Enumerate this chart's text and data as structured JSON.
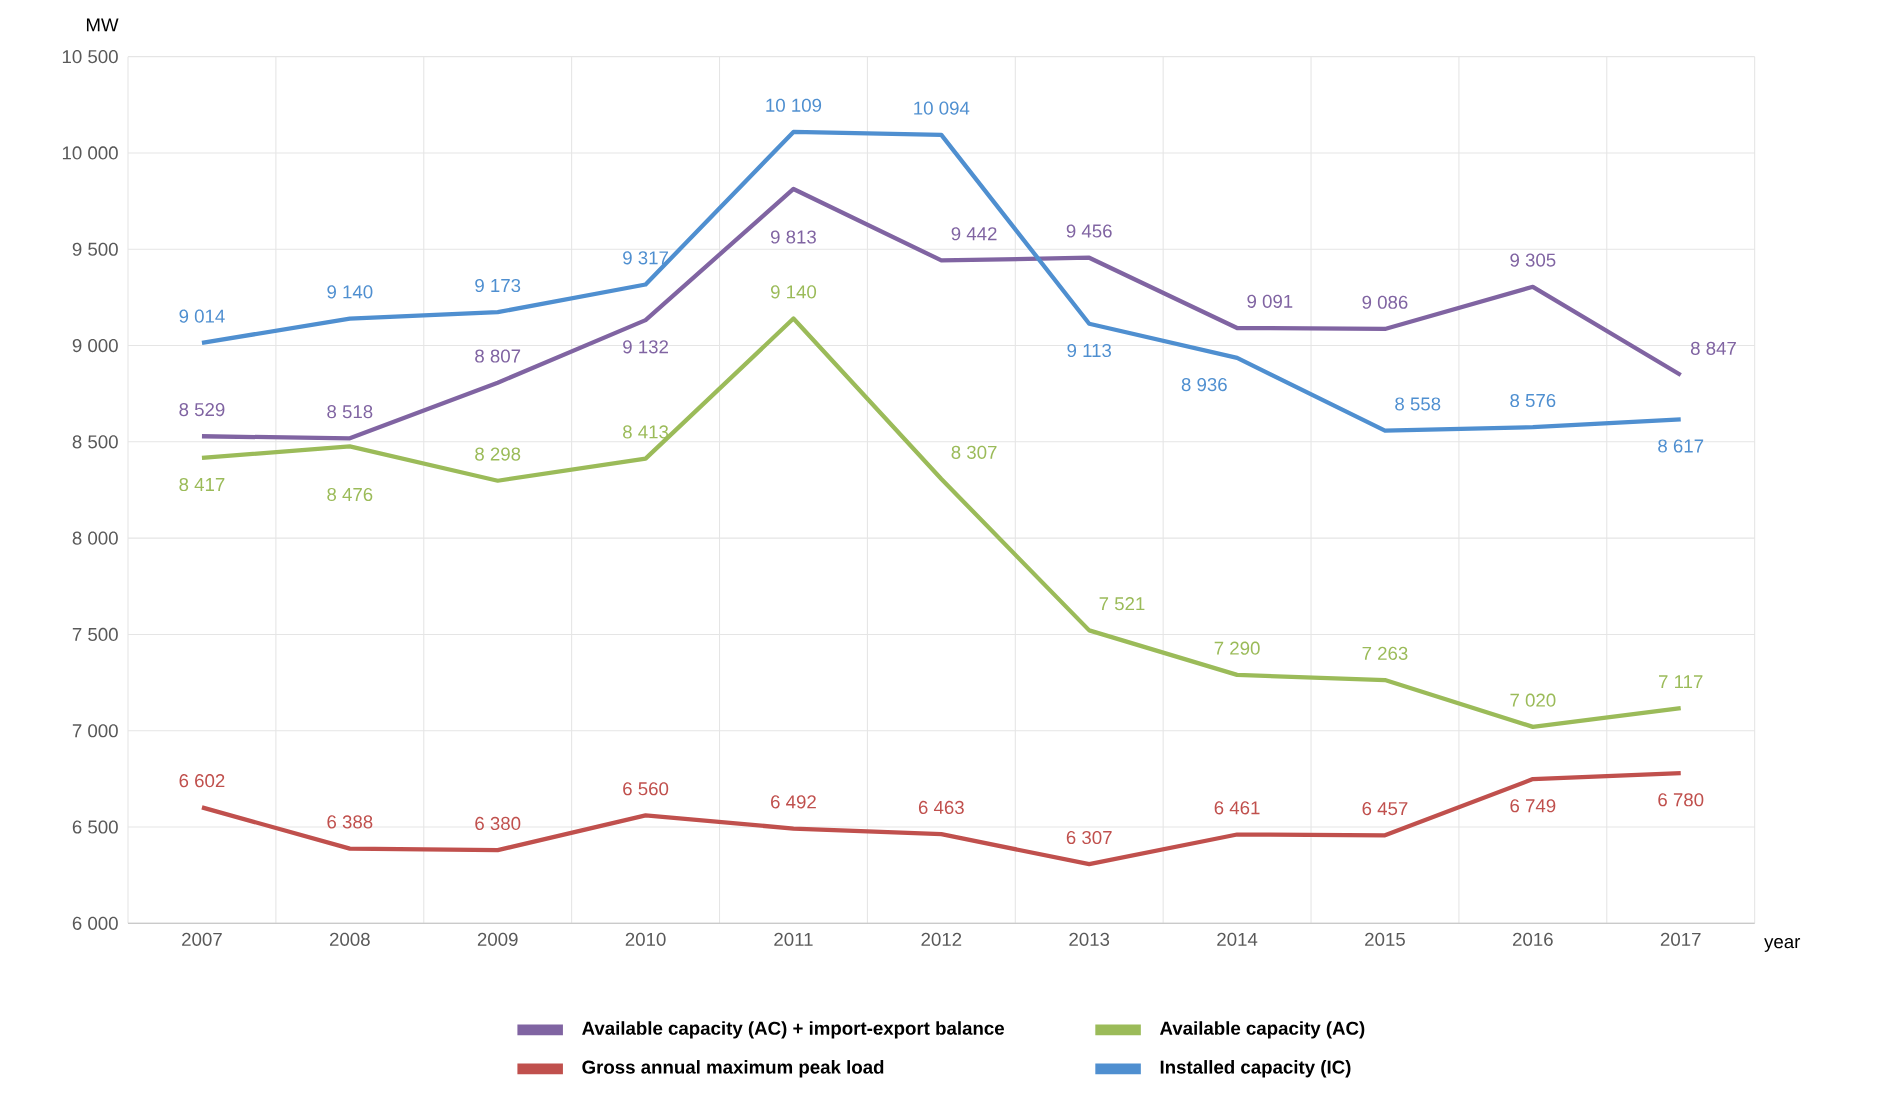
{
  "chart_data": {
    "type": "line",
    "xlabel": "year",
    "ylabel": "MW",
    "categories": [
      "2007",
      "2008",
      "2009",
      "2010",
      "2011",
      "2012",
      "2013",
      "2014",
      "2015",
      "2016",
      "2017"
    ],
    "series": [
      {
        "name": "Available capacity (AC) + import-export balance",
        "color": "#8064a2",
        "values": [
          8529,
          8518,
          8807,
          9132,
          9813,
          9442,
          9456,
          9091,
          9086,
          9305,
          8847
        ],
        "value_labels": [
          "8 529",
          "8 518",
          "8 807",
          "9 132",
          "9 813",
          "9 442",
          "9 456",
          "9 091",
          "9 086",
          "9 305",
          "8 847"
        ]
      },
      {
        "name": "Available capacity (AC)",
        "color": "#9bbb59",
        "values": [
          8417,
          8476,
          8298,
          8413,
          9140,
          8307,
          7521,
          7290,
          7263,
          7020,
          7117
        ],
        "value_labels": [
          "8 417",
          "8 476",
          "8 298",
          "8 413",
          "9 140",
          "8 307",
          "7 521",
          "7 290",
          "7 263",
          "7 020",
          "7 117"
        ]
      },
      {
        "name": "Gross annual maximum peak load",
        "color": "#c0504d",
        "values": [
          6602,
          6388,
          6380,
          6560,
          6492,
          6463,
          6307,
          6461,
          6457,
          6749,
          6780
        ],
        "value_labels": [
          "6 602",
          "6 388",
          "6 380",
          "6 560",
          "6 492",
          "6 463",
          "6 307",
          "6 461",
          "6 457",
          "6 749",
          "6 780"
        ]
      },
      {
        "name": "Installed capacity (IC)",
        "color": "#4f8fd0",
        "values": [
          9014,
          9140,
          9173,
          9317,
          10109,
          10094,
          9113,
          8936,
          8558,
          8576,
          8617
        ],
        "value_labels": [
          "9 014",
          "9 140",
          "9 173",
          "9 317",
          "10 109",
          "10 094",
          "9 113",
          "8 936",
          "8 558",
          "8 576",
          "8 617"
        ]
      }
    ],
    "ylim": [
      6000,
      10500
    ],
    "yticks": [
      {
        "value": 6000,
        "label": "6 000"
      },
      {
        "value": 6500,
        "label": "6 500"
      },
      {
        "value": 7000,
        "label": "7 000"
      },
      {
        "value": 7500,
        "label": "7 500"
      },
      {
        "value": 8000,
        "label": "8 000"
      },
      {
        "value": 8500,
        "label": "8 500"
      },
      {
        "value": 9000,
        "label": "9 000"
      },
      {
        "value": 9500,
        "label": "9 500"
      },
      {
        "value": 10000,
        "label": "10 000"
      },
      {
        "value": 10500,
        "label": "10 500"
      }
    ],
    "grid": true,
    "legend": "bottom",
    "marker": "none",
    "line_style": "solid"
  }
}
